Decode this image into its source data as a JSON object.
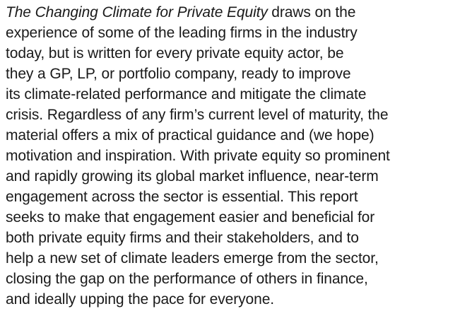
{
  "document": {
    "title": "The Changing Climate for Private Equity",
    "lines": [
      "draws on the",
      "experience of some of the leading firms in the industry",
      "today, but is written for every private equity actor, be",
      "they a GP, LP, or portfolio company, ready to improve",
      "its climate-related performance and mitigate the climate",
      "crisis. Regardless of any firm’s current level of maturity, the",
      "material offers a mix of practical guidance and (we hope)",
      "motivation and inspiration. With private equity so prominent",
      "and rapidly growing its global market influence, near-term",
      "engagement across the sector is essential. This report",
      "seeks to make that engagement easier and beneficial for",
      "both private equity firms and their stakeholders, and to",
      "help a new set of climate leaders emerge from the sector,",
      "closing the gap on the performance of others in finance,",
      "and ideally upping the pace for everyone."
    ]
  }
}
